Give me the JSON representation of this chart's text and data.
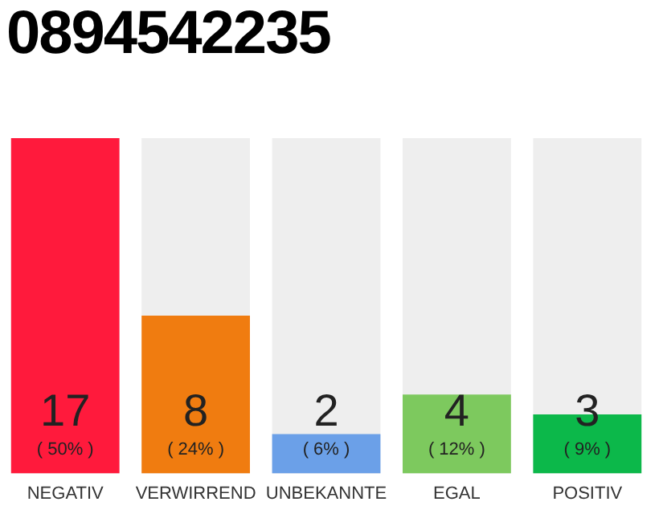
{
  "chart_data": {
    "type": "bar",
    "title": "0894542235",
    "categories": [
      "NEGATIV",
      "VERWIRREND",
      "UNBEKANNTE",
      "EGAL",
      "POSITIV"
    ],
    "values": [
      17,
      8,
      2,
      4,
      3
    ],
    "colors": [
      "#ff1a3c",
      "#f07c10",
      "#6ba0e8",
      "#7dc95e",
      "#0cb84a"
    ],
    "ylim": [
      0,
      17
    ],
    "tick_labels": "x",
    "grid": false,
    "legend": false,
    "data_labels": true,
    "annotations": [
      "( 50% )",
      "( 24% )",
      "( 6% )",
      "( 12% )",
      "( 9% )"
    ]
  }
}
